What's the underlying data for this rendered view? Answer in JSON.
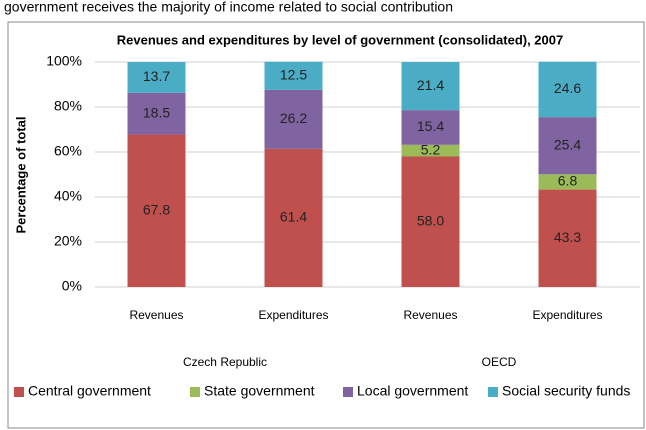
{
  "caption": "government receives the majority of income related to social contribution",
  "chart_data": {
    "type": "stacked_bar",
    "title": "Revenues and expenditures by level of government (consolidated), 2007",
    "y_label": "Percentage of total",
    "categories": [
      "Revenues",
      "Expenditures",
      "Revenues",
      "Expenditures"
    ],
    "groups": [
      "Czech Republic",
      "OECD"
    ],
    "series": [
      {
        "name": "Central government",
        "color": "#c0504d",
        "values": [
          67.8,
          61.4,
          58.0,
          43.3
        ],
        "value_labels": [
          "67.8",
          "61.4",
          "58.0",
          "43.3"
        ]
      },
      {
        "name": "State government",
        "color": "#9bbb59",
        "values": [
          null,
          null,
          5.2,
          6.8
        ]
      },
      {
        "name": "Local government",
        "color": "#8064a2",
        "values": [
          18.5,
          26.2,
          15.4,
          25.4
        ]
      },
      {
        "name": "Social security funds",
        "color": "#4bacc6",
        "values": [
          13.7,
          12.5,
          21.4,
          24.6
        ]
      }
    ],
    "ylim": [
      0,
      100
    ],
    "yticks": [
      {
        "value": 0,
        "label": "0%"
      },
      {
        "value": 20,
        "label": "20%"
      },
      {
        "value": 40,
        "label": "40%"
      },
      {
        "value": 60,
        "label": "60%"
      },
      {
        "value": 80,
        "label": "80%"
      },
      {
        "value": 100,
        "label": "100%"
      }
    ],
    "grid": true,
    "legend": "bottom"
  }
}
